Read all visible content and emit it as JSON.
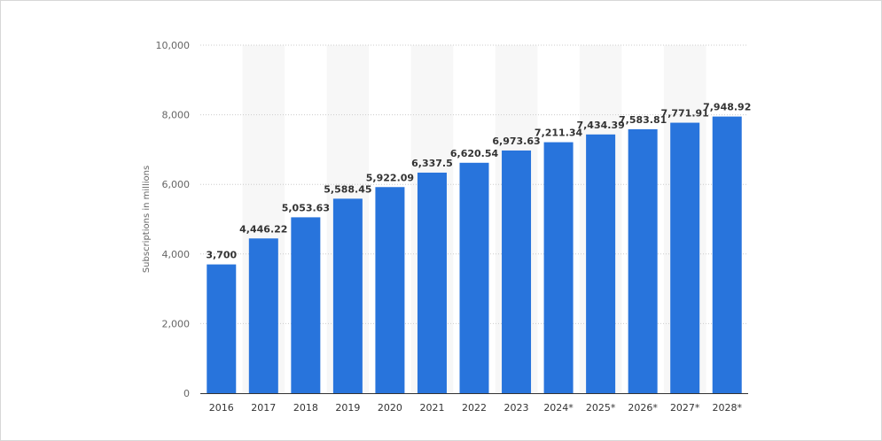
{
  "chart_data": {
    "type": "bar",
    "categories": [
      "2016",
      "2017",
      "2018",
      "2019",
      "2020",
      "2021",
      "2022",
      "2023",
      "2024*",
      "2025*",
      "2026*",
      "2027*",
      "2028*"
    ],
    "values": [
      3700,
      4446.22,
      5053.63,
      5588.45,
      5922.09,
      6337.5,
      6620.54,
      6973.63,
      7211.34,
      7434.39,
      7583.81,
      7771.91,
      7948.92
    ],
    "value_labels": [
      "3,700",
      "4,446.22",
      "5,053.63",
      "5,588.45",
      "5,922.09",
      "6,337.5",
      "6,620.54",
      "6,973.63",
      "7,211.34",
      "7,434.39",
      "7,583.81",
      "7,771.91",
      "7,948.92"
    ],
    "title": "",
    "xlabel": "",
    "ylabel": "Subscriptions in millions",
    "ylim": [
      0,
      10000
    ],
    "yticks": [
      0,
      2000,
      4000,
      6000,
      8000,
      10000
    ],
    "ytick_labels": [
      "0",
      "2,000",
      "4,000",
      "6,000",
      "8,000",
      "10,000"
    ],
    "grid": true,
    "legend": "none",
    "colors": {
      "bar": "#2874dc",
      "band": "#f7f7f7",
      "grid": "#cccccc",
      "axis": "#333333"
    }
  }
}
